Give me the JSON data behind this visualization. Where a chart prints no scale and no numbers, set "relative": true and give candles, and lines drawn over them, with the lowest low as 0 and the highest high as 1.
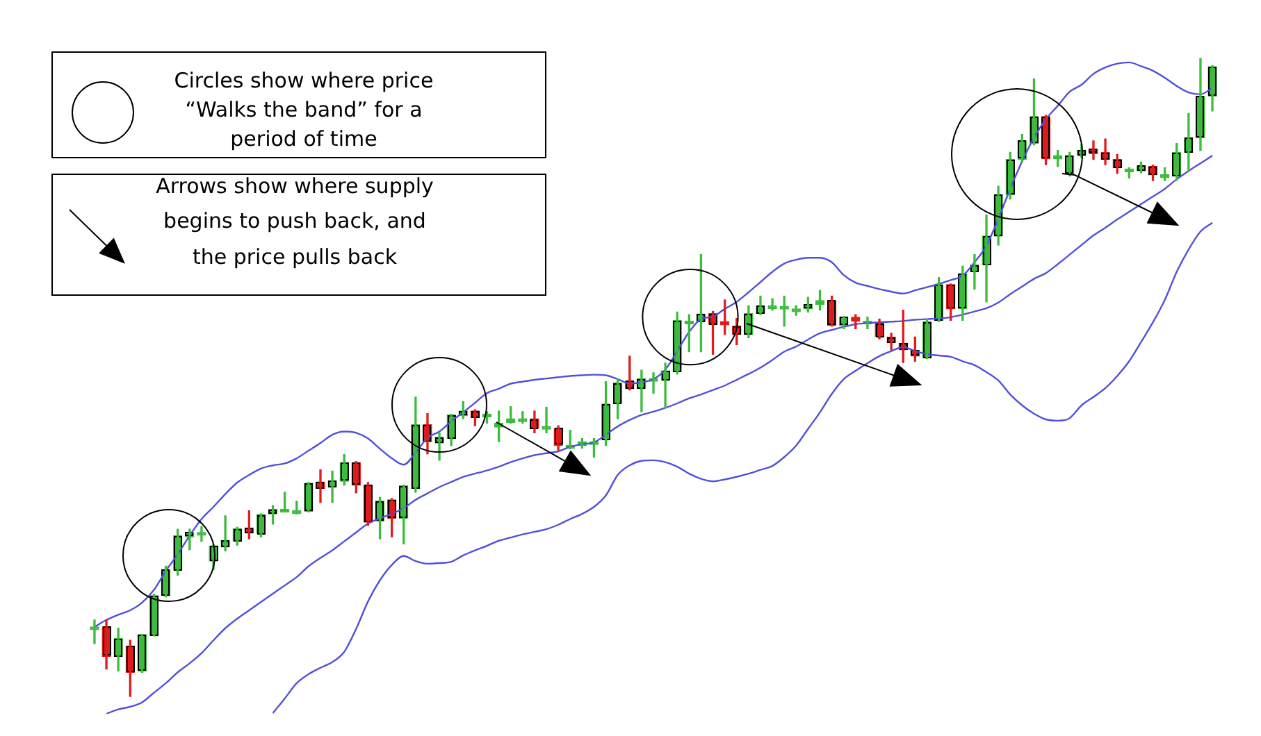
{
  "chart_data": {
    "type": "candlestick",
    "relative": true,
    "categories": [
      null,
      null,
      null,
      null,
      null,
      null,
      null,
      null,
      null,
      null,
      null,
      null,
      null,
      null,
      null,
      null,
      null,
      null,
      null,
      null,
      null,
      null,
      null,
      null,
      null,
      null,
      null,
      null,
      null,
      null,
      null,
      null,
      null,
      null,
      null,
      null,
      null,
      null,
      null,
      null,
      null,
      null,
      null,
      null,
      null,
      null,
      null,
      null,
      null,
      null,
      null,
      null,
      null,
      null,
      null,
      null,
      null,
      null,
      null,
      null,
      null,
      null,
      null,
      null,
      null,
      null,
      null,
      null,
      null,
      null,
      null,
      null,
      null,
      null,
      null,
      null,
      null,
      null,
      null,
      null,
      null,
      null,
      null,
      null,
      null,
      null,
      null,
      null,
      null,
      null,
      null,
      null,
      null,
      null,
      null
    ],
    "ohlc": [
      [
        0.109,
        0.12,
        0.083,
        0.109
      ],
      [
        0.109,
        0.12,
        0.043,
        0.063
      ],
      [
        0.063,
        0.107,
        0.04,
        0.091
      ],
      [
        0.079,
        0.088,
        0,
        0.038
      ],
      [
        0.04,
        0.097,
        0.038,
        0.097
      ],
      [
        0.096,
        0.16,
        0.095,
        0.158
      ],
      [
        0.158,
        0.204,
        0.156,
        0.199
      ],
      [
        0.198,
        0.262,
        0.19,
        0.252
      ],
      [
        0.25,
        0.262,
        0.23,
        0.257
      ],
      [
        0.257,
        0.266,
        0.243,
        0.257
      ],
      [
        0.212,
        0.238,
        0.199,
        0.236
      ],
      [
        0.234,
        0.283,
        0.228,
        0.244
      ],
      [
        0.243,
        0.265,
        0.237,
        0.263
      ],
      [
        0.264,
        0.291,
        0.247,
        0.256
      ],
      [
        0.255,
        0.286,
        0.25,
        0.285
      ],
      [
        0.286,
        0.299,
        0.27,
        0.293
      ],
      [
        0.293,
        0.32,
        0.29,
        0.293
      ],
      [
        0.291,
        0.306,
        0.286,
        0.291
      ],
      [
        0.29,
        0.335,
        0.289,
        0.334
      ],
      [
        0.336,
        0.355,
        0.304,
        0.326
      ],
      [
        0.328,
        0.353,
        0.304,
        0.338
      ],
      [
        0.337,
        0.379,
        0.331,
        0.366
      ],
      [
        0.366,
        0.368,
        0.319,
        0.331
      ],
      [
        0.331,
        0.335,
        0.268,
        0.273
      ],
      [
        0.275,
        0.312,
        0.247,
        0.306
      ],
      [
        0.308,
        0.31,
        0.25,
        0.279
      ],
      [
        0.279,
        0.331,
        0.239,
        0.33
      ],
      [
        0.326,
        0.469,
        0.32,
        0.426
      ],
      [
        0.426,
        0.443,
        0.38,
        0.399
      ],
      [
        0.397,
        0.413,
        0.37,
        0.406
      ],
      [
        0.404,
        0.442,
        0.393,
        0.441
      ],
      [
        0.44,
        0.462,
        0.435,
        0.447
      ],
      [
        0.447,
        0.449,
        0.424,
        0.437
      ],
      [
        0.438,
        0.446,
        0.428,
        0.442
      ],
      [
        0.422,
        0.447,
        0.399,
        0.428
      ],
      [
        0.429,
        0.454,
        0.428,
        0.435
      ],
      [
        0.435,
        0.446,
        0.428,
        0.435
      ],
      [
        0.435,
        0.447,
        0.413,
        0.42
      ],
      [
        0.423,
        0.453,
        0.413,
        0.423
      ],
      [
        0.42,
        0.424,
        0.386,
        0.393
      ],
      [
        0.393,
        0.417,
        0.388,
        0.393
      ],
      [
        0.393,
        0.404,
        0.389,
        0.399
      ],
      [
        0.399,
        0.404,
        0.375,
        0.399
      ],
      [
        0.402,
        0.493,
        0.393,
        0.458
      ],
      [
        0.459,
        0.497,
        0.435,
        0.491
      ],
      [
        0.494,
        0.533,
        0.48,
        0.482
      ],
      [
        0.482,
        0.511,
        0.446,
        0.498
      ],
      [
        0.498,
        0.507,
        0.475,
        0.498
      ],
      [
        0.495,
        0.522,
        0.452,
        0.51
      ],
      [
        0.509,
        0.602,
        0.505,
        0.589
      ],
      [
        0.588,
        0.598,
        0.54,
        0.588
      ],
      [
        0.587,
        0.692,
        0.54,
        0.599
      ],
      [
        0.6,
        0.603,
        0.536,
        0.583
      ],
      [
        0.587,
        0.621,
        0.567,
        0.582
      ],
      [
        0.58,
        0.592,
        0.551,
        0.567
      ],
      [
        0.567,
        0.612,
        0.562,
        0.6
      ],
      [
        0.6,
        0.627,
        0.598,
        0.612
      ],
      [
        0.612,
        0.623,
        0.605,
        0.612
      ],
      [
        0.611,
        0.627,
        0.58,
        0.611
      ],
      [
        0.607,
        0.612,
        0.597,
        0.607
      ],
      [
        0.607,
        0.625,
        0.602,
        0.614
      ],
      [
        0.614,
        0.636,
        0.605,
        0.62
      ],
      [
        0.62,
        0.627,
        0.58,
        0.581
      ],
      [
        0.581,
        0.595,
        0.576,
        0.594
      ],
      [
        0.594,
        0.598,
        0.576,
        0.588
      ],
      [
        0.588,
        0.594,
        0.576,
        0.588
      ],
      [
        0.585,
        0.591,
        0.56,
        0.564
      ],
      [
        0.563,
        0.569,
        0.543,
        0.554
      ],
      [
        0.553,
        0.605,
        0.523,
        0.543
      ],
      [
        0.542,
        0.563,
        0.525,
        0.533
      ],
      [
        0.53,
        0.591,
        0.529,
        0.587
      ],
      [
        0.589,
        0.656,
        0.587,
        0.645
      ],
      [
        0.645,
        0.646,
        0.589,
        0.607
      ],
      [
        0.607,
        0.674,
        0.589,
        0.662
      ],
      [
        0.666,
        0.692,
        0.638,
        0.676
      ],
      [
        0.676,
        0.754,
        0.618,
        0.721
      ],
      [
        0.721,
        0.799,
        0.707,
        0.786
      ],
      [
        0.786,
        0.852,
        0.779,
        0.841
      ],
      [
        0.841,
        0.88,
        0.837,
        0.87
      ],
      [
        0.866,
        0.967,
        0.864,
        0.908
      ],
      [
        0.908,
        0.91,
        0.833,
        0.842
      ],
      [
        0.842,
        0.855,
        0.83,
        0.847
      ],
      [
        0.818,
        0.852,
        0.815,
        0.847
      ],
      [
        0.847,
        0.865,
        0.844,
        0.855
      ],
      [
        0.857,
        0.87,
        0.841,
        0.85
      ],
      [
        0.852,
        0.873,
        0.833,
        0.841
      ],
      [
        0.841,
        0.849,
        0.819,
        0.828
      ],
      [
        0.826,
        0.828,
        0.812,
        0.826
      ],
      [
        0.823,
        0.837,
        0.82,
        0.831
      ],
      [
        0.83,
        0.832,
        0.808,
        0.817
      ],
      [
        0.817,
        0.828,
        0.808,
        0.817
      ],
      [
        0.815,
        0.866,
        0.808,
        0.852
      ],
      [
        0.852,
        0.913,
        0.823,
        0.875
      ],
      [
        0.875,
        1,
        0.855,
        0.94
      ],
      [
        0.94,
        0.988,
        0.917,
        0.986
      ]
    ],
    "colors": [
      "#3dbb3d",
      "#e01b1b",
      "#3dbb3d",
      "#e01b1b",
      "#3dbb3d",
      "#3dbb3d",
      "#3dbb3d",
      "#3dbb3d",
      "#3dbb3d",
      "#3dbb3d",
      "#3dbb3d",
      "#3dbb3d",
      "#3dbb3d",
      "#e01b1b",
      "#3dbb3d",
      "#3dbb3d",
      "#3dbb3d",
      "#3dbb3d",
      "#3dbb3d",
      "#e01b1b",
      "#3dbb3d",
      "#3dbb3d",
      "#e01b1b",
      "#e01b1b",
      "#3dbb3d",
      "#e01b1b",
      "#3dbb3d",
      "#3dbb3d",
      "#e01b1b",
      "#3dbb3d",
      "#3dbb3d",
      "#3dbb3d",
      "#e01b1b",
      "#3dbb3d",
      "#3dbb3d",
      "#3dbb3d",
      "#3dbb3d",
      "#e01b1b",
      "#3dbb3d",
      "#e01b1b",
      "#3dbb3d",
      "#3dbb3d",
      "#3dbb3d",
      "#3dbb3d",
      "#3dbb3d",
      "#e01b1b",
      "#3dbb3d",
      "#3dbb3d",
      "#3dbb3d",
      "#3dbb3d",
      "#3dbb3d",
      "#3dbb3d",
      "#e01b1b",
      "#e01b1b",
      "#e01b1b",
      "#3dbb3d",
      "#3dbb3d",
      "#3dbb3d",
      "#3dbb3d",
      "#3dbb3d",
      "#3dbb3d",
      "#3dbb3d",
      "#e01b1b",
      "#3dbb3d",
      "#e01b1b",
      "#3dbb3d",
      "#e01b1b",
      "#e01b1b",
      "#e01b1b",
      "#e01b1b",
      "#3dbb3d",
      "#3dbb3d",
      "#e01b1b",
      "#3dbb3d",
      "#3dbb3d",
      "#3dbb3d",
      "#3dbb3d",
      "#3dbb3d",
      "#3dbb3d",
      "#3dbb3d",
      "#e01b1b",
      "#3dbb3d",
      "#3dbb3d",
      "#3dbb3d",
      "#e01b1b",
      "#e01b1b",
      "#e01b1b",
      "#3dbb3d",
      "#3dbb3d",
      "#e01b1b",
      "#3dbb3d",
      "#3dbb3d",
      "#3dbb3d",
      "#3dbb3d",
      "#3dbb3d"
    ],
    "series": [
      {
        "type": "line",
        "color": "#5050dd",
        "values": [
          0.109,
          0.12,
          0.128,
          0.135,
          0.147,
          0.167,
          0.197,
          0.223,
          0.252,
          0.278,
          0.297,
          0.317,
          0.335,
          0.347,
          0.357,
          0.362,
          0.365,
          0.373,
          0.385,
          0.397,
          0.41,
          0.415,
          0.413,
          0.404,
          0.388,
          0.373,
          0.363,
          0.382,
          0.405,
          0.415,
          0.431,
          0.445,
          0.46,
          0.475,
          0.482,
          0.49,
          0.493,
          0.496,
          0.498,
          0.5,
          0.502,
          0.503,
          0.504,
          0.503,
          0.497,
          0.49,
          0.492,
          0.497,
          0.512,
          0.541,
          0.571,
          0.591,
          0.595,
          0.607,
          0.618,
          0.633,
          0.649,
          0.665,
          0.678,
          0.684,
          0.687,
          0.687,
          0.68,
          0.66,
          0.648,
          0.643,
          0.638,
          0.634,
          0.631,
          0.636,
          0.641,
          0.646,
          0.652,
          0.659,
          0.68,
          0.706,
          0.748,
          0.795,
          0.838,
          0.875,
          0.904,
          0.925,
          0.947,
          0.958,
          0.975,
          0.985,
          0.991,
          0.993,
          0.987,
          0.98,
          0.969,
          0.956,
          0.946,
          0.943,
          0.953
        ]
      },
      {
        "type": "line",
        "color": "#5050dd",
        "values": [
          null,
          -0.027,
          -0.02,
          -0.016,
          -0.009,
          0.006,
          0.021,
          0.038,
          0.052,
          0.068,
          0.088,
          0.107,
          0.122,
          0.135,
          0.148,
          0.161,
          0.174,
          0.187,
          0.204,
          0.217,
          0.229,
          0.243,
          0.257,
          0.271,
          0.279,
          0.286,
          0.295,
          0.308,
          0.318,
          0.328,
          0.336,
          0.344,
          0.349,
          0.354,
          0.36,
          0.367,
          0.373,
          0.378,
          0.381,
          0.384,
          0.391,
          0.395,
          0.398,
          0.41,
          0.423,
          0.433,
          0.441,
          0.446,
          0.452,
          0.459,
          0.467,
          0.473,
          0.48,
          0.487,
          0.496,
          0.505,
          0.515,
          0.527,
          0.54,
          0.548,
          0.559,
          0.569,
          0.574,
          0.579,
          0.583,
          0.585,
          0.586,
          0.587,
          0.588,
          0.59,
          0.591,
          0.592,
          0.594,
          0.598,
          0.603,
          0.608,
          0.617,
          0.63,
          0.642,
          0.654,
          0.663,
          0.677,
          0.692,
          0.707,
          0.722,
          0.734,
          0.747,
          0.759,
          0.771,
          0.783,
          0.795,
          0.81,
          0.823,
          0.835,
          0.847
        ]
      },
      {
        "type": "line",
        "color": "#5050dd",
        "values": [
          null,
          null,
          null,
          null,
          null,
          null,
          null,
          null,
          null,
          null,
          null,
          null,
          null,
          null,
          null,
          -0.026,
          -0.003,
          0.021,
          0.035,
          0.045,
          0.054,
          0.07,
          0.106,
          0.149,
          0.182,
          0.206,
          0.22,
          0.212,
          0.208,
          0.209,
          0.211,
          0.221,
          0.229,
          0.236,
          0.244,
          0.249,
          0.254,
          0.258,
          0.262,
          0.269,
          0.278,
          0.286,
          0.297,
          0.315,
          0.347,
          0.362,
          0.369,
          0.37,
          0.367,
          0.36,
          0.349,
          0.341,
          0.337,
          0.34,
          0.344,
          0.349,
          0.355,
          0.361,
          0.375,
          0.393,
          0.419,
          0.445,
          0.474,
          0.497,
          0.51,
          0.522,
          0.533,
          0.541,
          0.547,
          0.541,
          0.536,
          0.534,
          0.532,
          0.525,
          0.519,
          0.508,
          0.495,
          0.473,
          0.456,
          0.443,
          0.434,
          0.432,
          0.436,
          0.456,
          0.469,
          0.483,
          0.502,
          0.525,
          0.555,
          0.586,
          0.621,
          0.665,
          0.7,
          0.728,
          0.742
        ]
      }
    ],
    "annotations": [
      "Circles show where price “Walks the band” for a period of time",
      "Arrows show where supply begins to push back, and the price pulls back"
    ]
  }
}
